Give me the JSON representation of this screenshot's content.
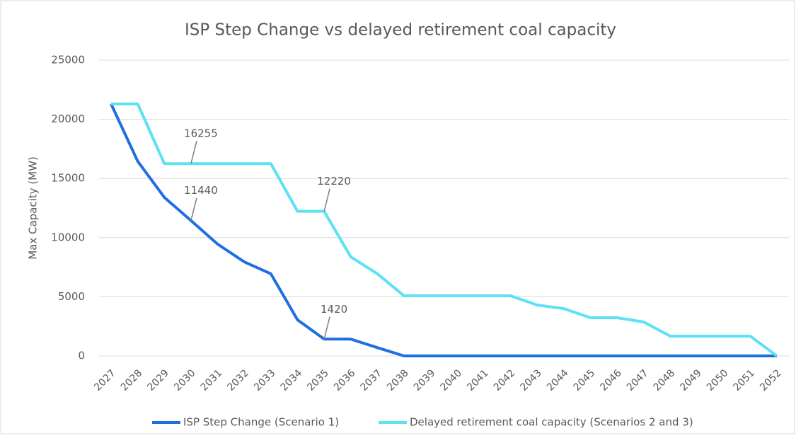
{
  "chart_data": {
    "type": "line",
    "title": "ISP Step Change vs delayed retirement coal capacity",
    "y_label": "Max Capacity (MW)",
    "categories": [
      "2027",
      "2028",
      "2029",
      "2030",
      "2031",
      "2032",
      "2033",
      "2034",
      "2035",
      "2036",
      "2037",
      "2038",
      "2039",
      "2040",
      "2041",
      "2042",
      "2043",
      "2044",
      "2045",
      "2046",
      "2047",
      "2048",
      "2049",
      "2050",
      "2051",
      "2052"
    ],
    "series": [
      {
        "name": "ISP Step Change (Scenario 1)",
        "color": "#1f6fe0",
        "values": [
          21300,
          16450,
          13400,
          11440,
          9450,
          7950,
          6940,
          3050,
          1420,
          1420,
          700,
          0,
          0,
          0,
          0,
          0,
          0,
          0,
          0,
          0,
          0,
          0,
          0,
          0,
          0,
          0
        ],
        "value_labels": [
          null,
          null,
          null,
          "11440",
          null,
          null,
          null,
          null,
          "1420",
          null,
          null,
          null,
          null,
          null,
          null,
          null,
          null,
          null,
          null,
          null,
          null,
          null,
          null,
          null,
          null,
          null
        ]
      },
      {
        "name": "Delayed retirement coal capacity (Scenarios 2 and 3)",
        "color": "#5ce1f5",
        "values": [
          21300,
          21300,
          16255,
          16255,
          16255,
          16255,
          16255,
          12220,
          12220,
          8370,
          6940,
          5080,
          5080,
          5080,
          5080,
          5080,
          4300,
          4000,
          3230,
          3230,
          2870,
          1670,
          1670,
          1670,
          1670,
          0
        ],
        "value_labels": [
          null,
          null,
          null,
          "16255",
          null,
          null,
          null,
          null,
          "12220",
          null,
          null,
          null,
          null,
          null,
          null,
          null,
          null,
          null,
          null,
          null,
          null,
          null,
          null,
          null,
          null,
          null
        ]
      }
    ],
    "ylim": [
      0,
      25000
    ],
    "yticks": [
      0,
      5000,
      10000,
      15000,
      20000,
      25000
    ],
    "grid": true,
    "legend": "bottom"
  }
}
